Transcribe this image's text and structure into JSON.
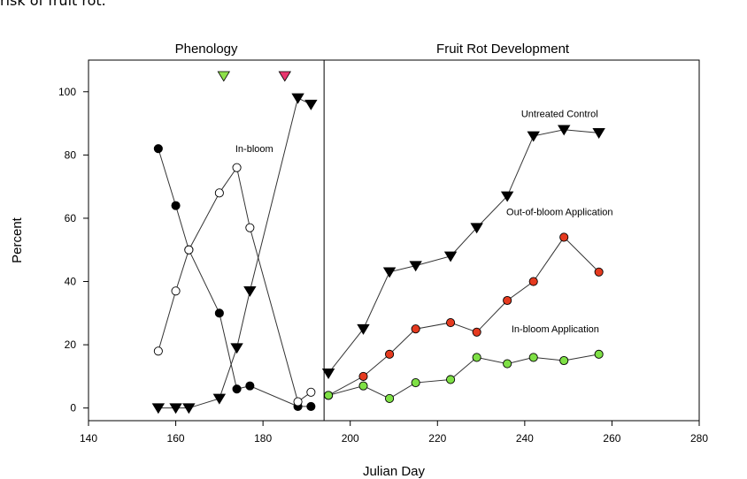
{
  "page": {
    "caption_fragment": "risk of fruit rot."
  },
  "chart_data": {
    "type": "scatter",
    "panel_titles": [
      "Phenology",
      "Fruit Rot Development"
    ],
    "xlabel": "Julian Day",
    "ylabel": "Percent",
    "xlim": [
      140,
      280
    ],
    "ylim": [
      -4,
      110
    ],
    "xticks": [
      140,
      160,
      180,
      200,
      220,
      240,
      260,
      280
    ],
    "yticks": [
      0,
      20,
      40,
      60,
      80,
      100
    ],
    "divider_x": 194,
    "grid": false,
    "series": [
      {
        "marker": "filled-circle",
        "color": "#000000",
        "x": [
          156,
          160,
          163,
          170,
          174,
          177,
          188,
          191
        ],
        "y": [
          82,
          64,
          50,
          30,
          6,
          7,
          0.5,
          0.5
        ]
      },
      {
        "name": "In-bloom",
        "marker": "open-circle",
        "color": "#ffffff",
        "x": [
          156,
          160,
          163,
          170,
          174,
          177,
          188,
          191
        ],
        "y": [
          18,
          37,
          50,
          68,
          76,
          57,
          2,
          5
        ]
      },
      {
        "marker": "filled-triangle-down",
        "color": "#000000",
        "x": [
          156,
          160,
          163,
          170,
          174,
          177,
          188,
          191
        ],
        "y": [
          0,
          0,
          0,
          3,
          19,
          37,
          98,
          96
        ]
      },
      {
        "name": "Untreated Control",
        "marker": "filled-triangle-down",
        "color": "#000000",
        "x": [
          195,
          203,
          209,
          215,
          223,
          229,
          236,
          242,
          249,
          257
        ],
        "y": [
          11,
          25,
          43,
          45,
          48,
          57,
          67,
          86,
          88,
          87
        ]
      },
      {
        "name": "Out-of-bloom Application",
        "marker": "filled-circle",
        "color": "#e53a1f",
        "x": [
          195,
          203,
          209,
          215,
          223,
          229,
          236,
          242,
          249,
          257
        ],
        "y": [
          4,
          10,
          17,
          25,
          27,
          24,
          34,
          40,
          54,
          43
        ]
      },
      {
        "name": "In-bloom Application",
        "marker": "filled-circle",
        "color": "#7ee045",
        "x": [
          195,
          203,
          209,
          215,
          223,
          229,
          236,
          242,
          249,
          257
        ],
        "y": [
          4,
          7,
          3,
          8,
          9,
          16,
          14,
          16,
          15,
          17
        ]
      }
    ],
    "markers_top": [
      {
        "x": 171,
        "y": 105,
        "marker": "triangle-down",
        "color": "#8ee04a"
      },
      {
        "x": 185,
        "y": 105,
        "marker": "triangle-down",
        "color": "#e8356e"
      }
    ],
    "annotations": [
      {
        "text": "In-bloom",
        "x": 178,
        "y": 81
      },
      {
        "text": "Untreated Control",
        "x": 248,
        "y": 92
      },
      {
        "text": "Out-of-bloom Application",
        "x": 248,
        "y": 61
      },
      {
        "text": "In-bloom Application",
        "x": 247,
        "y": 24
      }
    ]
  }
}
